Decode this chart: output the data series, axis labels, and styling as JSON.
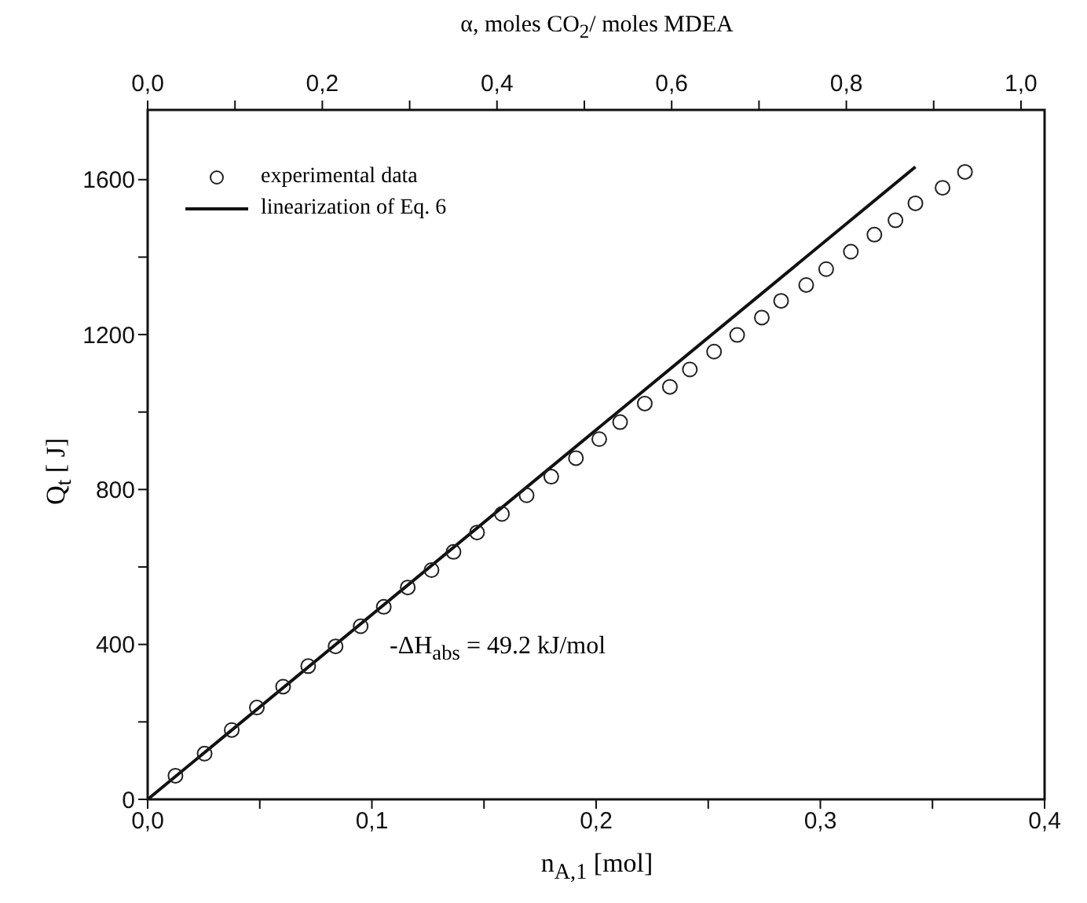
{
  "chart_data": {
    "type": "scatter",
    "xlabel": "n$_{A,1}$  [mol]",
    "ylabel": "Q$_{t}$  [ J]",
    "x2label": "α, moles CO$_{2}$/ moles MDEA",
    "annotations": [
      "-ΔH$_{abs}$ = 49.2 kJ/mol"
    ],
    "xlim": [
      0,
      0.4
    ],
    "xticks": [
      {
        "value": 0,
        "label": "0,0"
      },
      {
        "value": 0.05,
        "label": null
      },
      {
        "value": 0.1,
        "label": "0,1"
      },
      {
        "value": 0.15,
        "label": null
      },
      {
        "value": 0.2,
        "label": "0,2"
      },
      {
        "value": 0.25,
        "label": null
      },
      {
        "value": 0.3,
        "label": "0,3"
      },
      {
        "value": 0.35,
        "label": null
      },
      {
        "value": 0.4,
        "label": "0,4"
      }
    ],
    "x2lim": [
      0,
      1.027
    ],
    "x2ticks": [
      {
        "value": 0,
        "label": "0,0"
      },
      {
        "value": 0.1,
        "label": null
      },
      {
        "value": 0.2,
        "label": "0,2"
      },
      {
        "value": 0.3,
        "label": null
      },
      {
        "value": 0.4,
        "label": "0,4"
      },
      {
        "value": 0.5,
        "label": null
      },
      {
        "value": 0.6,
        "label": "0,6"
      },
      {
        "value": 0.7,
        "label": null
      },
      {
        "value": 0.8,
        "label": "0,8"
      },
      {
        "value": 0.9,
        "label": null
      },
      {
        "value": 1.0,
        "label": "1,0"
      }
    ],
    "ylim": [
      0,
      1780
    ],
    "yticks": [
      0,
      {
        "value": 200,
        "label": null
      },
      400,
      {
        "value": 600,
        "label": null
      },
      800,
      {
        "value": 1000,
        "label": null
      },
      1200,
      {
        "value": 1400,
        "label": null
      },
      1600
    ],
    "legend": "top left",
    "grid": false,
    "series": [
      {
        "name": "experimental data",
        "marker": "circle",
        "color": "#222222",
        "x": [
          0.0124,
          0.0254,
          0.0375,
          0.0487,
          0.0604,
          0.0716,
          0.0838,
          0.095,
          0.1053,
          0.116,
          0.1266,
          0.1364,
          0.1469,
          0.158,
          0.169,
          0.18,
          0.191,
          0.2014,
          0.2107,
          0.2217,
          0.2329,
          0.2418,
          0.2526,
          0.2629,
          0.2739,
          0.2825,
          0.2937,
          0.3026,
          0.3136,
          0.3241,
          0.3335,
          0.3424,
          0.3545,
          0.3645
        ],
        "values": [
          61,
          118,
          179,
          237,
          291,
          344,
          395,
          447,
          497,
          547,
          592,
          639,
          689,
          737,
          785,
          833,
          881,
          930,
          974,
          1022,
          1065,
          1110,
          1156,
          1199,
          1244,
          1287,
          1328,
          1369,
          1414,
          1458,
          1495,
          1539,
          1579,
          1620
        ]
      },
      {
        "name": "linearization of Eq. 6",
        "type": "line",
        "line_style": "solid",
        "marker": "none",
        "color": "#111111",
        "x": [
          0,
          0.3424
        ],
        "values": [
          0,
          1633
        ]
      }
    ]
  }
}
